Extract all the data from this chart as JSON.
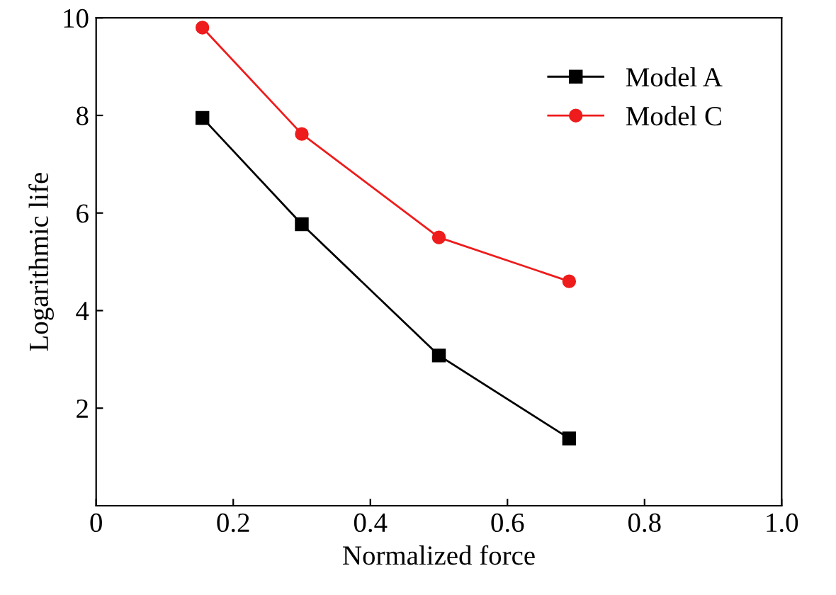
{
  "chart_data": {
    "type": "line",
    "xlabel": "Normalized force",
    "ylabel": "Logarithmic life",
    "xlim": [
      0,
      1.0
    ],
    "ylim": [
      0,
      10
    ],
    "xticks": [
      0,
      0.2,
      0.4,
      0.6,
      0.8,
      {
        "value": 1,
        "label": "1.0"
      }
    ],
    "yticks": [
      2,
      4,
      6,
      8,
      10
    ],
    "x": [
      0.155,
      0.3,
      0.5,
      0.69
    ],
    "series": [
      {
        "name": "Model A",
        "color": "#000000",
        "marker": "square",
        "values": [
          7.95,
          5.77,
          3.08,
          1.38
        ]
      },
      {
        "name": "Model C",
        "color": "#ee1c1c",
        "marker": "circle",
        "values": [
          9.8,
          7.62,
          5.5,
          4.6
        ]
      }
    ],
    "grid": false,
    "legend": "top right",
    "line_style": "solid"
  }
}
